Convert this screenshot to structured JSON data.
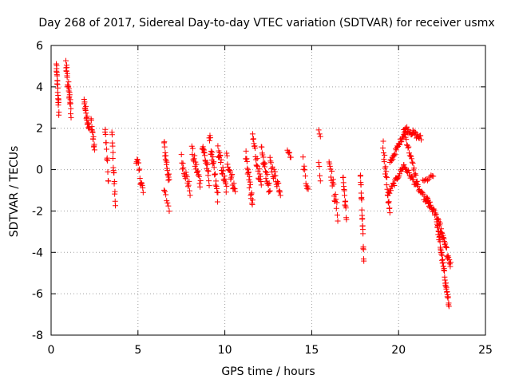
{
  "chart_data": {
    "type": "scatter",
    "title": "Day 268 of 2017, Sidereal Day-to-day VTEC variation (SDTVAR) for receiver usmx",
    "xlabel": "GPS time / hours",
    "ylabel": "SDTVAR / TECUs",
    "xlim": [
      0,
      25
    ],
    "ylim": [
      -8,
      6
    ],
    "xticks": [
      0,
      5,
      10,
      15,
      20,
      25
    ],
    "yticks": [
      -8,
      -6,
      -4,
      -2,
      0,
      2,
      4,
      6
    ],
    "grid": true,
    "marker": "+",
    "color": "#ff0000",
    "segments": [
      {
        "x0": 0.3,
        "x1": 0.45,
        "y0": 5.0,
        "y1": 2.8,
        "n": 22,
        "jit": 0.35
      },
      {
        "x0": 0.85,
        "x1": 1.15,
        "y0": 5.1,
        "y1": 2.8,
        "n": 28,
        "jit": 0.35
      },
      {
        "x0": 1.9,
        "x1": 2.2,
        "y0": 3.3,
        "y1": 1.9,
        "n": 22,
        "jit": 0.25
      },
      {
        "x0": 2.3,
        "x1": 2.5,
        "y0": 2.4,
        "y1": 0.9,
        "n": 14,
        "jit": 0.25
      },
      {
        "x0": 3.1,
        "x1": 3.3,
        "y0": 2.1,
        "y1": -0.6,
        "n": 12,
        "jit": 0.3
      },
      {
        "x0": 3.5,
        "x1": 3.7,
        "y0": 1.7,
        "y1": -1.7,
        "n": 16,
        "jit": 0.3
      },
      {
        "x0": 4.9,
        "x1": 5.3,
        "y0": 0.6,
        "y1": -1.1,
        "n": 16,
        "jit": 0.3
      },
      {
        "x0": 6.5,
        "x1": 6.8,
        "y0": 1.2,
        "y1": -0.6,
        "n": 18,
        "jit": 0.3
      },
      {
        "x0": 6.5,
        "x1": 6.8,
        "y0": -1.0,
        "y1": -1.9,
        "n": 7,
        "jit": 0.15
      },
      {
        "x0": 7.5,
        "x1": 8.0,
        "y0": 0.5,
        "y1": -1.0,
        "n": 18,
        "jit": 0.3
      },
      {
        "x0": 8.1,
        "x1": 8.6,
        "y0": 0.9,
        "y1": -0.7,
        "n": 20,
        "jit": 0.3
      },
      {
        "x0": 8.7,
        "x1": 9.1,
        "y0": 1.3,
        "y1": -0.5,
        "n": 20,
        "jit": 0.3
      },
      {
        "x0": 9.1,
        "x1": 9.6,
        "y0": 1.6,
        "y1": -1.4,
        "n": 24,
        "jit": 0.35
      },
      {
        "x0": 9.6,
        "x1": 10.1,
        "y0": 1.0,
        "y1": -1.0,
        "n": 22,
        "jit": 0.3
      },
      {
        "x0": 10.1,
        "x1": 10.6,
        "y0": 0.6,
        "y1": -1.1,
        "n": 20,
        "jit": 0.3
      },
      {
        "x0": 11.2,
        "x1": 11.6,
        "y0": 0.8,
        "y1": -1.8,
        "n": 22,
        "jit": 0.35
      },
      {
        "x0": 11.6,
        "x1": 12.1,
        "y0": 1.6,
        "y1": -0.9,
        "n": 22,
        "jit": 0.35
      },
      {
        "x0": 12.1,
        "x1": 12.6,
        "y0": 0.9,
        "y1": -1.1,
        "n": 22,
        "jit": 0.3
      },
      {
        "x0": 12.6,
        "x1": 13.2,
        "y0": 0.3,
        "y1": -1.0,
        "n": 22,
        "jit": 0.3
      },
      {
        "x0": 13.6,
        "x1": 13.8,
        "y0": 1.0,
        "y1": 0.6,
        "n": 6,
        "jit": 0.1
      },
      {
        "x0": 14.5,
        "x1": 14.8,
        "y0": 0.4,
        "y1": -1.1,
        "n": 10,
        "jit": 0.25
      },
      {
        "x0": 15.4,
        "x1": 15.5,
        "y0": 1.9,
        "y1": 1.6,
        "n": 3,
        "jit": 0.05
      },
      {
        "x0": 15.4,
        "x1": 15.5,
        "y0": 0.4,
        "y1": -0.5,
        "n": 4,
        "jit": 0.1
      },
      {
        "x0": 16.0,
        "x1": 16.5,
        "y0": 0.5,
        "y1": -2.2,
        "n": 20,
        "jit": 0.35
      },
      {
        "x0": 16.8,
        "x1": 17.0,
        "y0": -0.3,
        "y1": -2.4,
        "n": 14,
        "jit": 0.3
      },
      {
        "x0": 17.8,
        "x1": 18.0,
        "y0": -0.1,
        "y1": -4.4,
        "n": 22,
        "jit": 0.3
      },
      {
        "x0": 19.1,
        "x1": 19.5,
        "y0": 1.3,
        "y1": -2.2,
        "n": 22,
        "jit": 0.35
      },
      {
        "x0": 19.5,
        "x1": 20.4,
        "y0": 0.3,
        "y1": 1.9,
        "n": 28,
        "jit": 0.12
      },
      {
        "x0": 20.4,
        "x1": 21.3,
        "y0": 2.0,
        "y1": 1.5,
        "n": 24,
        "jit": 0.15
      },
      {
        "x0": 20.3,
        "x1": 21.1,
        "y0": 1.9,
        "y1": -0.7,
        "n": 24,
        "jit": 0.15
      },
      {
        "x0": 19.4,
        "x1": 20.3,
        "y0": -1.2,
        "y1": 0.2,
        "n": 24,
        "jit": 0.12
      },
      {
        "x0": 20.3,
        "x1": 21.8,
        "y0": 0.2,
        "y1": -1.8,
        "n": 36,
        "jit": 0.12
      },
      {
        "x0": 21.4,
        "x1": 22.0,
        "y0": -0.6,
        "y1": -0.3,
        "n": 10,
        "jit": 0.1
      },
      {
        "x0": 21.6,
        "x1": 22.4,
        "y0": -1.4,
        "y1": -2.6,
        "n": 24,
        "jit": 0.15
      },
      {
        "x0": 22.2,
        "x1": 22.9,
        "y0": -2.5,
        "y1": -6.6,
        "n": 46,
        "jit": 0.2
      },
      {
        "x0": 22.4,
        "x1": 23.0,
        "y0": -2.9,
        "y1": -4.6,
        "n": 24,
        "jit": 0.2
      }
    ]
  }
}
